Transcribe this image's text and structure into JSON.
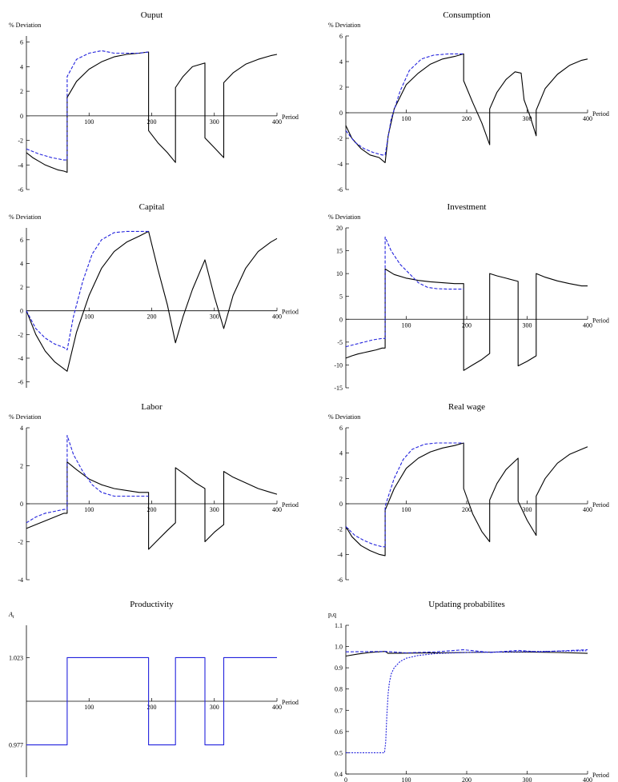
{
  "colors": {
    "model": "#000000",
    "learning": "#2222dd",
    "axis": "#000000"
  },
  "chart_data": [
    {
      "type": "line",
      "title": "Ouput",
      "ylabel": "% Deviation",
      "xlabel": "Period",
      "xlim": [
        0,
        400
      ],
      "ylim": [
        -6,
        6.5
      ],
      "xticks": [
        100,
        200,
        300,
        400
      ],
      "yticks": [
        -6,
        -4,
        -2,
        0,
        2,
        4,
        6
      ],
      "series": [
        {
          "style": "solid",
          "x": [
            0,
            10,
            20,
            30,
            40,
            50,
            60,
            65,
            65,
            80,
            100,
            120,
            140,
            160,
            180,
            195,
            195,
            210,
            225,
            238,
            238,
            250,
            265,
            285,
            285,
            300,
            315,
            315,
            330,
            350,
            370,
            390,
            400
          ],
          "y": [
            -3.0,
            -3.4,
            -3.7,
            -4.0,
            -4.2,
            -4.4,
            -4.5,
            -4.6,
            1.5,
            2.8,
            3.8,
            4.4,
            4.8,
            5.0,
            5.1,
            5.2,
            -1.2,
            -2.2,
            -3.0,
            -3.8,
            2.3,
            3.2,
            4.0,
            4.3,
            -1.8,
            -2.6,
            -3.4,
            2.7,
            3.5,
            4.2,
            4.6,
            4.9,
            5.0
          ]
        },
        {
          "style": "dashed",
          "x": [
            0,
            20,
            40,
            60,
            65,
            65,
            80,
            100,
            120,
            140,
            160,
            180,
            195
          ],
          "y": [
            -2.7,
            -3.1,
            -3.4,
            -3.6,
            -3.6,
            3.2,
            4.6,
            5.1,
            5.3,
            5.1,
            5.1,
            5.1,
            5.2
          ]
        }
      ]
    },
    {
      "type": "line",
      "title": "Consumption",
      "ylabel": "% Deviation",
      "xlabel": "Period",
      "xlim": [
        0,
        400
      ],
      "ylim": [
        -6,
        6
      ],
      "xticks": [
        100,
        200,
        300,
        400
      ],
      "yticks": [
        -6,
        -4,
        -2,
        0,
        2,
        4,
        6
      ],
      "series": [
        {
          "style": "solid",
          "x": [
            0,
            10,
            25,
            40,
            55,
            65,
            70,
            80,
            100,
            120,
            140,
            160,
            180,
            195,
            195,
            210,
            225,
            238,
            238,
            250,
            265,
            280,
            290,
            295,
            305,
            315,
            315,
            330,
            350,
            370,
            390,
            400
          ],
          "y": [
            -1.0,
            -2.0,
            -2.8,
            -3.3,
            -3.5,
            -3.9,
            -1.8,
            0.3,
            2.2,
            3.1,
            3.8,
            4.2,
            4.4,
            4.6,
            2.5,
            0.8,
            -0.8,
            -2.5,
            0.3,
            1.6,
            2.6,
            3.2,
            3.1,
            1.0,
            -0.3,
            -1.8,
            0.2,
            1.9,
            3.0,
            3.7,
            4.1,
            4.2
          ]
        },
        {
          "style": "dashed",
          "x": [
            0,
            15,
            30,
            45,
            60,
            65,
            75,
            90,
            105,
            125,
            145,
            170,
            195
          ],
          "y": [
            -1.4,
            -2.3,
            -2.8,
            -3.1,
            -3.3,
            -3.3,
            -0.5,
            1.7,
            3.3,
            4.2,
            4.5,
            4.6,
            4.6
          ]
        }
      ]
    },
    {
      "type": "line",
      "title": "Capital",
      "ylabel": "% Deviation",
      "xlabel": "Period",
      "xlim": [
        0,
        400
      ],
      "ylim": [
        -6.5,
        7
      ],
      "xticks": [
        100,
        200,
        300,
        400
      ],
      "yticks": [
        -6,
        -4,
        -2,
        0,
        2,
        4,
        6
      ],
      "series": [
        {
          "style": "solid",
          "x": [
            0,
            15,
            30,
            45,
            60,
            65,
            80,
            100,
            120,
            140,
            160,
            180,
            195,
            210,
            225,
            238,
            250,
            265,
            285,
            300,
            315,
            330,
            350,
            370,
            390,
            400
          ],
          "y": [
            0,
            -2.0,
            -3.4,
            -4.3,
            -4.9,
            -5.1,
            -1.8,
            1.3,
            3.6,
            5.0,
            5.8,
            6.3,
            6.7,
            3.5,
            0.5,
            -2.7,
            -0.5,
            1.8,
            4.3,
            1.2,
            -1.5,
            1.3,
            3.6,
            5.0,
            5.8,
            6.1
          ]
        },
        {
          "style": "dashed",
          "x": [
            0,
            15,
            30,
            45,
            60,
            65,
            75,
            90,
            105,
            120,
            140,
            160,
            180,
            195
          ],
          "y": [
            0,
            -1.5,
            -2.3,
            -2.8,
            -3.1,
            -3.3,
            -0.5,
            2.5,
            4.8,
            6.0,
            6.6,
            6.7,
            6.7,
            6.7
          ]
        }
      ]
    },
    {
      "type": "line",
      "title": "Investment",
      "ylabel": "% Deviation",
      "xlabel": "Period",
      "xlim": [
        0,
        400
      ],
      "ylim": [
        -15,
        20
      ],
      "xticks": [
        100,
        200,
        300,
        400
      ],
      "yticks": [
        -15,
        -10,
        -5,
        0,
        5,
        10,
        15,
        20
      ],
      "series": [
        {
          "style": "solid",
          "x": [
            0,
            10,
            20,
            30,
            40,
            50,
            60,
            65,
            65,
            80,
            100,
            120,
            140,
            160,
            180,
            195,
            195,
            210,
            225,
            238,
            238,
            250,
            265,
            285,
            285,
            300,
            315,
            315,
            330,
            350,
            370,
            390,
            400
          ],
          "y": [
            -8.5,
            -8.0,
            -7.6,
            -7.3,
            -7.0,
            -6.7,
            -6.3,
            -6.3,
            11.0,
            9.8,
            9.0,
            8.5,
            8.2,
            8.0,
            7.8,
            7.8,
            -11.2,
            -10.0,
            -8.8,
            -7.5,
            10.0,
            9.5,
            9.0,
            8.3,
            -10.2,
            -9.2,
            -8.0,
            10.0,
            9.2,
            8.4,
            7.8,
            7.3,
            7.3
          ]
        },
        {
          "style": "dashed",
          "x": [
            0,
            15,
            30,
            45,
            60,
            65,
            65,
            75,
            90,
            105,
            120,
            135,
            150,
            170,
            195
          ],
          "y": [
            -6.0,
            -5.5,
            -5.0,
            -4.5,
            -4.2,
            -4.2,
            18.0,
            15.0,
            12.0,
            10.0,
            8.0,
            7.0,
            6.7,
            6.6,
            6.6
          ]
        }
      ]
    },
    {
      "type": "line",
      "title": "Labor",
      "ylabel": "% Deviation",
      "xlabel": "Period",
      "xlim": [
        0,
        400
      ],
      "ylim": [
        -4,
        4
      ],
      "xticks": [
        100,
        200,
        300,
        400
      ],
      "yticks": [
        -4,
        -2,
        0,
        2,
        4
      ],
      "series": [
        {
          "style": "solid",
          "x": [
            0,
            15,
            30,
            45,
            60,
            65,
            65,
            80,
            100,
            120,
            140,
            160,
            180,
            195,
            195,
            210,
            225,
            238,
            238,
            255,
            270,
            285,
            285,
            300,
            315,
            315,
            330,
            350,
            370,
            390,
            400
          ],
          "y": [
            -1.3,
            -1.1,
            -0.9,
            -0.7,
            -0.5,
            -0.5,
            2.2,
            1.8,
            1.3,
            1.0,
            0.8,
            0.7,
            0.6,
            0.6,
            -2.4,
            -1.9,
            -1.4,
            -1.0,
            1.9,
            1.5,
            1.1,
            0.8,
            -2.0,
            -1.5,
            -1.1,
            1.7,
            1.4,
            1.1,
            0.8,
            0.6,
            0.5
          ]
        },
        {
          "style": "dashed",
          "x": [
            0,
            15,
            30,
            45,
            60,
            65,
            65,
            75,
            90,
            105,
            120,
            140,
            160,
            195
          ],
          "y": [
            -1.0,
            -0.7,
            -0.5,
            -0.4,
            -0.3,
            -0.3,
            3.6,
            2.6,
            1.7,
            1.0,
            0.6,
            0.4,
            0.4,
            0.4
          ]
        }
      ]
    },
    {
      "type": "line",
      "title": "Real wage",
      "ylabel": "% Deviation",
      "xlabel": "Period",
      "xlim": [
        0,
        400
      ],
      "ylim": [
        -6,
        6
      ],
      "xticks": [
        100,
        200,
        300,
        400
      ],
      "yticks": [
        -6,
        -4,
        -2,
        0,
        2,
        4,
        6
      ],
      "series": [
        {
          "style": "solid",
          "x": [
            0,
            10,
            25,
            40,
            55,
            65,
            65,
            80,
            100,
            120,
            140,
            160,
            180,
            195,
            195,
            210,
            225,
            238,
            238,
            250,
            265,
            285,
            285,
            300,
            315,
            315,
            330,
            350,
            370,
            390,
            400
          ],
          "y": [
            -1.8,
            -2.6,
            -3.3,
            -3.7,
            -4.0,
            -4.1,
            -0.5,
            1.2,
            2.8,
            3.6,
            4.1,
            4.4,
            4.6,
            4.8,
            1.2,
            -0.8,
            -2.2,
            -3.0,
            0.3,
            1.6,
            2.7,
            3.6,
            0.2,
            -1.3,
            -2.5,
            0.6,
            2.0,
            3.2,
            3.9,
            4.3,
            4.5
          ]
        },
        {
          "style": "dashed",
          "x": [
            0,
            15,
            30,
            45,
            60,
            65,
            65,
            80,
            95,
            110,
            130,
            150,
            170,
            195
          ],
          "y": [
            -1.8,
            -2.5,
            -2.9,
            -3.2,
            -3.4,
            -3.4,
            -0.2,
            2.0,
            3.5,
            4.3,
            4.7,
            4.8,
            4.8,
            4.8
          ]
        }
      ]
    },
    {
      "type": "line",
      "title": "Productivity",
      "ylabel": "A_t",
      "xlabel": "Period",
      "xlim": [
        0,
        400
      ],
      "ylim": [
        0.96,
        1.04
      ],
      "xticks": [
        100,
        200,
        300,
        400
      ],
      "yticks": [
        0.977,
        1.023
      ],
      "yticklabels": [
        "0.977",
        "1.023"
      ],
      "series": [
        {
          "style": "solid-blue",
          "x": [
            0,
            65,
            65,
            195,
            195,
            238,
            238,
            285,
            285,
            315,
            315,
            400
          ],
          "y": [
            0.977,
            0.977,
            1.023,
            1.023,
            0.977,
            0.977,
            1.023,
            1.023,
            0.977,
            0.977,
            1.023,
            1.023
          ]
        }
      ]
    },
    {
      "type": "line",
      "title": "Updating probabilites",
      "ylabel": "p,q",
      "xlabel": "Period",
      "xlim": [
        0,
        400
      ],
      "ylim": [
        0.4,
        1.1
      ],
      "xticks": [
        0,
        100,
        200,
        300,
        400
      ],
      "yticks": [
        0.4,
        0.5,
        0.6,
        0.7,
        0.8,
        0.9,
        1.0,
        1.1
      ],
      "yticklabels": [
        "0.4",
        "0.5",
        "0.6",
        "0.7",
        "0.8",
        "0.9",
        "1.0",
        "1.1"
      ],
      "series": [
        {
          "style": "solid",
          "x": [
            0,
            20,
            40,
            65,
            70,
            100,
            150,
            200,
            250,
            300,
            350,
            400
          ],
          "y": [
            0.955,
            0.965,
            0.972,
            0.977,
            0.968,
            0.969,
            0.97,
            0.972,
            0.974,
            0.974,
            0.972,
            0.968
          ]
        },
        {
          "style": "dashed",
          "x": [
            0,
            50,
            65,
            100,
            150,
            195,
            240,
            285,
            320,
            400
          ],
          "y": [
            0.975,
            0.976,
            0.977,
            0.97,
            0.975,
            0.985,
            0.972,
            0.982,
            0.975,
            0.985
          ]
        },
        {
          "style": "dotted-blue",
          "x": [
            0,
            64,
            66,
            68,
            70,
            72,
            75,
            80,
            90,
            100,
            120,
            150,
            200,
            300,
            400
          ],
          "y": [
            0.5,
            0.5,
            0.55,
            0.68,
            0.78,
            0.83,
            0.87,
            0.9,
            0.93,
            0.945,
            0.958,
            0.967,
            0.972,
            0.976,
            0.98
          ]
        }
      ]
    }
  ]
}
